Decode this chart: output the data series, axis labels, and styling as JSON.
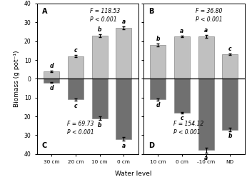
{
  "panel_A": {
    "label": "A",
    "categories": [
      "30 cm",
      "20 cm",
      "10 cm",
      "0 cm"
    ],
    "above": [
      4.0,
      12.0,
      23.0,
      27.0
    ],
    "below": [
      -2.0,
      -11.0,
      -21.0,
      -32.0
    ],
    "above_err": [
      0.3,
      0.5,
      0.8,
      0.7
    ],
    "below_err": [
      0.3,
      0.6,
      0.9,
      1.0
    ],
    "above_letters": [
      "d",
      "c",
      "b",
      "a"
    ],
    "below_letters": [
      "d",
      "c",
      "b",
      "a"
    ],
    "stat_text_top": "F = 118.53\nP < 0.001",
    "stat_text_bot": "F = 69.73\nP < 0.001",
    "top_label": "A",
    "bot_label": "C"
  },
  "panel_B": {
    "label": "B",
    "categories": [
      "10 cm",
      "0 cm",
      "-10 cm",
      "ND"
    ],
    "above": [
      18.0,
      22.5,
      22.5,
      13.0
    ],
    "below": [
      -11.0,
      -18.0,
      -38.0,
      -27.0
    ],
    "above_err": [
      0.6,
      0.5,
      0.6,
      0.4
    ],
    "below_err": [
      0.5,
      0.4,
      1.5,
      0.8
    ],
    "above_letters": [
      "b",
      "a",
      "a",
      "c"
    ],
    "below_letters": [
      "d",
      "c",
      "a",
      "b"
    ],
    "stat_text_top": "F = 36.80\nP < 0.001",
    "stat_text_bot": "F = 154.12\nP < 0.001",
    "top_label": "B",
    "bot_label": "D"
  },
  "ylim": [
    -40,
    40
  ],
  "yticks": [
    -40,
    -30,
    -20,
    -10,
    0,
    10,
    20,
    30,
    40
  ],
  "yticklabels": [
    "40",
    "30",
    "20",
    "10",
    "0",
    "10",
    "20",
    "30",
    "40"
  ],
  "ylabel": "Biomass (g pot⁻¹)",
  "xlabel": "Water level",
  "above_color": "#c0c0c0",
  "below_color": "#707070",
  "bar_width": 0.65
}
